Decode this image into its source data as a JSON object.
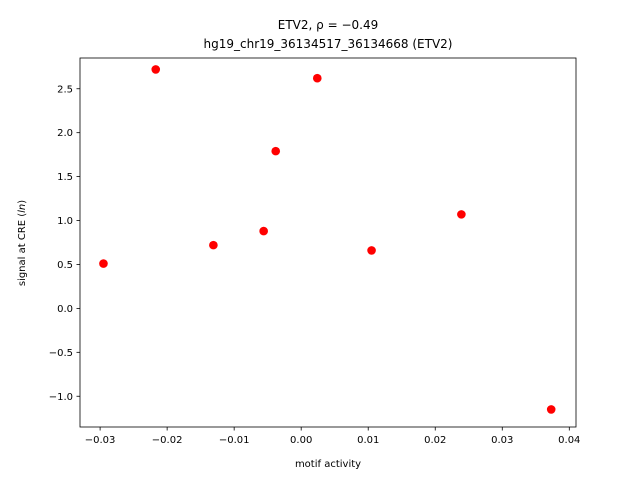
{
  "chart_data": {
    "type": "scatter",
    "title": "ETV2, ρ = −0.49",
    "subtitle": "hg19_chr19_36134517_36134668 (ETV2)",
    "xlabel": "motif activity",
    "ylabel": "signal at CRE (ln)",
    "xlim": [
      -0.033,
      0.041
    ],
    "ylim": [
      -1.35,
      2.85
    ],
    "x_ticks": [
      -0.03,
      -0.02,
      -0.01,
      0.0,
      0.01,
      0.02,
      0.03,
      0.04
    ],
    "x_tick_labels": [
      "−0.03",
      "−0.02",
      "−0.01",
      "0.00",
      "0.01",
      "0.02",
      "0.03",
      "0.04"
    ],
    "y_ticks": [
      -1.0,
      -0.5,
      0.0,
      0.5,
      1.0,
      1.5,
      2.0,
      2.5
    ],
    "y_tick_labels": [
      "−1.0",
      "−0.5",
      "0.0",
      "0.5",
      "1.0",
      "1.5",
      "2.0",
      "2.5"
    ],
    "grid": false,
    "marker_color": "#ff0000",
    "points": [
      {
        "x": -0.0295,
        "y": 0.51
      },
      {
        "x": -0.0217,
        "y": 2.72
      },
      {
        "x": -0.0131,
        "y": 0.72
      },
      {
        "x": -0.0056,
        "y": 0.88
      },
      {
        "x": -0.0038,
        "y": 1.79
      },
      {
        "x": 0.0024,
        "y": 2.62
      },
      {
        "x": 0.0105,
        "y": 0.66
      },
      {
        "x": 0.0239,
        "y": 1.07
      },
      {
        "x": 0.0373,
        "y": -1.15
      }
    ]
  }
}
